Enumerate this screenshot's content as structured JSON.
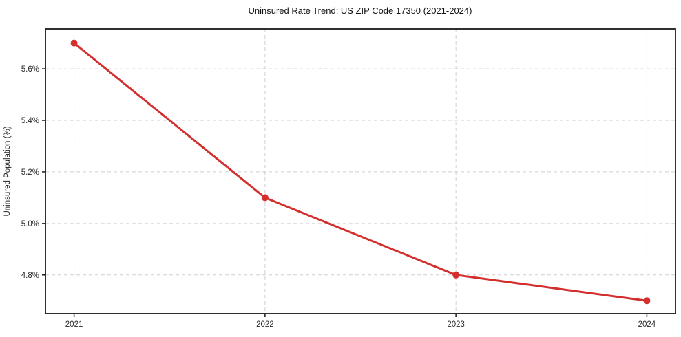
{
  "chart_data": {
    "type": "line",
    "title": "Uninsured Rate Trend: US ZIP Code 17350 (2021-2024)",
    "xlabel": "",
    "ylabel": "Uninsured Population (%)",
    "x": [
      2021,
      2022,
      2023,
      2024
    ],
    "values": [
      5.7,
      5.1,
      4.8,
      4.7
    ],
    "x_tick_labels": [
      "2021",
      "2022",
      "2023",
      "2024"
    ],
    "y_ticks": [
      4.8,
      5.0,
      5.2,
      5.4,
      5.6
    ],
    "y_tick_labels": [
      "4.8%",
      "5.0%",
      "5.2%",
      "5.4%",
      "5.6%"
    ],
    "xlim": [
      2020.85,
      2024.15
    ],
    "ylim": [
      4.65,
      5.755
    ],
    "grid": true,
    "legend_position": "none",
    "line_color": "#d32f2f",
    "marker_color": "#d32f2f",
    "grid_color": "#cfcfcf"
  }
}
